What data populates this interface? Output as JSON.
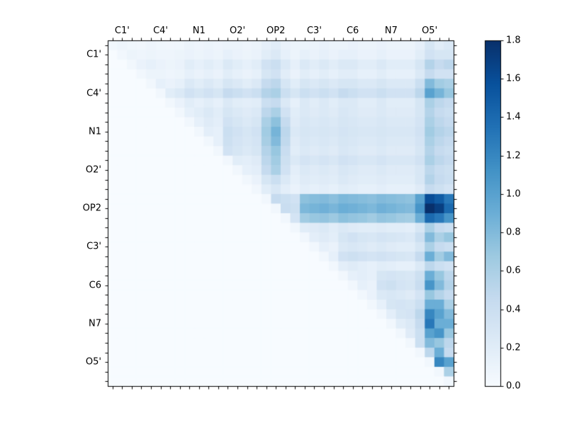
{
  "figure": {
    "background": "#ffffff"
  },
  "chart_data": {
    "type": "heatmap",
    "title": "",
    "xlabel": "",
    "ylabel": "",
    "x_tick_labels": [
      "C1'",
      "C4'",
      "N1",
      "O2'",
      "OP2",
      "C3'",
      "C6",
      "N7",
      "O5'"
    ],
    "y_tick_labels": [
      "C1'",
      "C4'",
      "N1",
      "O2'",
      "OP2",
      "C3'",
      "C6",
      "N7",
      "O5'"
    ],
    "label_cell_indices": [
      1,
      5,
      9,
      13,
      17,
      21,
      25,
      29,
      33
    ],
    "grid_size": 36,
    "vmin": 0.0,
    "vmax": 1.8,
    "colormap_name": "Blues",
    "colormap_anchors": [
      [
        0.0,
        "#f7fbff"
      ],
      [
        0.125,
        "#deebf7"
      ],
      [
        0.25,
        "#c6dbef"
      ],
      [
        0.375,
        "#9ecae1"
      ],
      [
        0.5,
        "#6baed6"
      ],
      [
        0.625,
        "#4292c6"
      ],
      [
        0.75,
        "#2171b5"
      ],
      [
        0.875,
        "#08519c"
      ],
      [
        1.0,
        "#08306b"
      ]
    ],
    "colorbar_position": "right",
    "colorbar_ticks": [
      "0.0",
      "0.2",
      "0.4",
      "0.6",
      "0.8",
      "1.0",
      "1.2",
      "1.4",
      "1.6",
      "1.8"
    ],
    "matrix": [
      [
        0.05,
        0.08,
        0.06,
        0.05,
        0.08,
        0.06,
        0.05,
        0.06,
        0.1,
        0.08,
        0.1,
        0.08,
        0.1,
        0.1,
        0.08,
        0.1,
        0.15,
        0.2,
        0.12,
        0.1,
        0.1,
        0.1,
        0.12,
        0.1,
        0.1,
        0.12,
        0.1,
        0.1,
        0.12,
        0.1,
        0.1,
        0.1,
        0.15,
        0.3,
        0.2,
        0.25
      ],
      [
        0,
        0.05,
        0.1,
        0.08,
        0.1,
        0.08,
        0.08,
        0.1,
        0.12,
        0.1,
        0.12,
        0.1,
        0.15,
        0.12,
        0.1,
        0.12,
        0.2,
        0.25,
        0.15,
        0.1,
        0.15,
        0.12,
        0.15,
        0.12,
        0.15,
        0.15,
        0.12,
        0.12,
        0.15,
        0.12,
        0.12,
        0.12,
        0.2,
        0.35,
        0.3,
        0.3
      ],
      [
        0,
        0,
        0.05,
        0.12,
        0.15,
        0.12,
        0.1,
        0.12,
        0.2,
        0.15,
        0.2,
        0.15,
        0.25,
        0.2,
        0.15,
        0.2,
        0.35,
        0.4,
        0.25,
        0.15,
        0.25,
        0.2,
        0.25,
        0.2,
        0.25,
        0.25,
        0.2,
        0.2,
        0.25,
        0.2,
        0.2,
        0.2,
        0.3,
        0.55,
        0.45,
        0.5
      ],
      [
        0,
        0,
        0,
        0.05,
        0.1,
        0.1,
        0.08,
        0.1,
        0.15,
        0.12,
        0.15,
        0.12,
        0.2,
        0.15,
        0.12,
        0.15,
        0.3,
        0.35,
        0.2,
        0.12,
        0.2,
        0.15,
        0.2,
        0.15,
        0.2,
        0.2,
        0.15,
        0.15,
        0.2,
        0.15,
        0.15,
        0.15,
        0.25,
        0.45,
        0.35,
        0.35
      ],
      [
        0,
        0,
        0,
        0,
        0.05,
        0.15,
        0.12,
        0.15,
        0.25,
        0.2,
        0.25,
        0.2,
        0.3,
        0.25,
        0.2,
        0.25,
        0.45,
        0.5,
        0.3,
        0.2,
        0.3,
        0.25,
        0.3,
        0.25,
        0.3,
        0.3,
        0.25,
        0.25,
        0.3,
        0.25,
        0.25,
        0.25,
        0.4,
        0.8,
        0.65,
        0.6
      ],
      [
        0,
        0,
        0,
        0,
        0,
        0.05,
        0.2,
        0.25,
        0.35,
        0.3,
        0.35,
        0.3,
        0.45,
        0.4,
        0.35,
        0.4,
        0.55,
        0.6,
        0.4,
        0.3,
        0.4,
        0.35,
        0.4,
        0.35,
        0.45,
        0.4,
        0.35,
        0.35,
        0.4,
        0.35,
        0.35,
        0.35,
        0.5,
        1.0,
        0.85,
        0.7
      ],
      [
        0,
        0,
        0,
        0,
        0,
        0,
        0.05,
        0.12,
        0.2,
        0.15,
        0.2,
        0.15,
        0.25,
        0.2,
        0.18,
        0.2,
        0.4,
        0.45,
        0.25,
        0.15,
        0.25,
        0.2,
        0.25,
        0.2,
        0.25,
        0.25,
        0.2,
        0.2,
        0.25,
        0.2,
        0.2,
        0.2,
        0.3,
        0.6,
        0.5,
        0.45
      ],
      [
        0,
        0,
        0,
        0,
        0,
        0,
        0,
        0.05,
        0.15,
        0.2,
        0.25,
        0.2,
        0.3,
        0.25,
        0.22,
        0.25,
        0.5,
        0.6,
        0.35,
        0.2,
        0.25,
        0.22,
        0.25,
        0.22,
        0.28,
        0.25,
        0.22,
        0.22,
        0.25,
        0.22,
        0.22,
        0.22,
        0.3,
        0.55,
        0.45,
        0.4
      ],
      [
        0,
        0,
        0,
        0,
        0,
        0,
        0,
        0,
        0.05,
        0.15,
        0.22,
        0.18,
        0.35,
        0.3,
        0.25,
        0.3,
        0.6,
        0.75,
        0.45,
        0.22,
        0.28,
        0.25,
        0.28,
        0.25,
        0.3,
        0.28,
        0.25,
        0.25,
        0.28,
        0.25,
        0.25,
        0.25,
        0.32,
        0.6,
        0.5,
        0.45
      ],
      [
        0,
        0,
        0,
        0,
        0,
        0,
        0,
        0,
        0,
        0.05,
        0.18,
        0.15,
        0.4,
        0.35,
        0.3,
        0.35,
        0.65,
        0.85,
        0.5,
        0.25,
        0.3,
        0.28,
        0.3,
        0.28,
        0.32,
        0.3,
        0.28,
        0.28,
        0.3,
        0.28,
        0.28,
        0.28,
        0.35,
        0.65,
        0.55,
        0.5
      ],
      [
        0,
        0,
        0,
        0,
        0,
        0,
        0,
        0,
        0,
        0,
        0.05,
        0.15,
        0.38,
        0.32,
        0.28,
        0.32,
        0.62,
        0.8,
        0.48,
        0.22,
        0.28,
        0.25,
        0.28,
        0.25,
        0.3,
        0.28,
        0.25,
        0.25,
        0.28,
        0.25,
        0.25,
        0.25,
        0.32,
        0.6,
        0.5,
        0.45
      ],
      [
        0,
        0,
        0,
        0,
        0,
        0,
        0,
        0,
        0,
        0,
        0,
        0.05,
        0.35,
        0.3,
        0.25,
        0.3,
        0.55,
        0.7,
        0.42,
        0.2,
        0.25,
        0.22,
        0.25,
        0.22,
        0.28,
        0.25,
        0.22,
        0.22,
        0.25,
        0.22,
        0.22,
        0.22,
        0.3,
        0.55,
        0.45,
        0.4
      ],
      [
        0,
        0,
        0,
        0,
        0,
        0,
        0,
        0,
        0,
        0,
        0,
        0,
        0.05,
        0.2,
        0.18,
        0.22,
        0.5,
        0.65,
        0.38,
        0.25,
        0.32,
        0.28,
        0.32,
        0.28,
        0.35,
        0.32,
        0.28,
        0.28,
        0.32,
        0.28,
        0.28,
        0.28,
        0.35,
        0.6,
        0.5,
        0.45
      ],
      [
        0,
        0,
        0,
        0,
        0,
        0,
        0,
        0,
        0,
        0,
        0,
        0,
        0,
        0.05,
        0.15,
        0.18,
        0.45,
        0.6,
        0.35,
        0.18,
        0.25,
        0.22,
        0.25,
        0.22,
        0.28,
        0.25,
        0.22,
        0.22,
        0.25,
        0.22,
        0.22,
        0.22,
        0.28,
        0.5,
        0.42,
        0.38
      ],
      [
        0,
        0,
        0,
        0,
        0,
        0,
        0,
        0,
        0,
        0,
        0,
        0,
        0,
        0,
        0.05,
        0.12,
        0.3,
        0.4,
        0.25,
        0.15,
        0.22,
        0.2,
        0.22,
        0.2,
        0.25,
        0.22,
        0.2,
        0.2,
        0.22,
        0.2,
        0.2,
        0.2,
        0.28,
        0.55,
        0.45,
        0.4
      ],
      [
        0,
        0,
        0,
        0,
        0,
        0,
        0,
        0,
        0,
        0,
        0,
        0,
        0,
        0,
        0,
        0.05,
        0.2,
        0.28,
        0.18,
        0.12,
        0.18,
        0.15,
        0.18,
        0.15,
        0.2,
        0.18,
        0.15,
        0.15,
        0.18,
        0.15,
        0.15,
        0.15,
        0.22,
        0.45,
        0.38,
        0.32
      ],
      [
        0,
        0,
        0,
        0,
        0,
        0,
        0,
        0,
        0,
        0,
        0,
        0,
        0,
        0,
        0,
        0,
        0.05,
        0.45,
        0.4,
        0.35,
        0.75,
        0.78,
        0.8,
        0.76,
        0.82,
        0.8,
        0.78,
        0.76,
        0.8,
        0.78,
        0.76,
        0.74,
        1.0,
        1.6,
        1.5,
        1.3
      ],
      [
        0,
        0,
        0,
        0,
        0,
        0,
        0,
        0,
        0,
        0,
        0,
        0,
        0,
        0,
        0,
        0,
        0,
        0.05,
        0.42,
        0.38,
        0.82,
        0.85,
        0.88,
        0.84,
        0.9,
        0.88,
        0.85,
        0.82,
        0.88,
        0.85,
        0.82,
        0.8,
        1.1,
        1.8,
        1.7,
        1.4
      ],
      [
        0,
        0,
        0,
        0,
        0,
        0,
        0,
        0,
        0,
        0,
        0,
        0,
        0,
        0,
        0,
        0,
        0,
        0,
        0.05,
        0.32,
        0.65,
        0.7,
        0.72,
        0.68,
        0.75,
        0.72,
        0.7,
        0.66,
        0.72,
        0.7,
        0.66,
        0.64,
        0.9,
        1.4,
        1.3,
        1.1
      ],
      [
        0,
        0,
        0,
        0,
        0,
        0,
        0,
        0,
        0,
        0,
        0,
        0,
        0,
        0,
        0,
        0,
        0,
        0,
        0,
        0.05,
        0.2,
        0.22,
        0.25,
        0.2,
        0.25,
        0.22,
        0.2,
        0.2,
        0.22,
        0.2,
        0.2,
        0.18,
        0.3,
        0.6,
        0.45,
        0.4
      ],
      [
        0,
        0,
        0,
        0,
        0,
        0,
        0,
        0,
        0,
        0,
        0,
        0,
        0,
        0,
        0,
        0,
        0,
        0,
        0,
        0,
        0.05,
        0.18,
        0.22,
        0.18,
        0.3,
        0.35,
        0.3,
        0.28,
        0.32,
        0.3,
        0.28,
        0.25,
        0.4,
        0.8,
        0.6,
        0.7
      ],
      [
        0,
        0,
        0,
        0,
        0,
        0,
        0,
        0,
        0,
        0,
        0,
        0,
        0,
        0,
        0,
        0,
        0,
        0,
        0,
        0,
        0,
        0.05,
        0.15,
        0.12,
        0.25,
        0.28,
        0.25,
        0.22,
        0.25,
        0.22,
        0.2,
        0.2,
        0.3,
        0.6,
        0.45,
        0.4
      ],
      [
        0,
        0,
        0,
        0,
        0,
        0,
        0,
        0,
        0,
        0,
        0,
        0,
        0,
        0,
        0,
        0,
        0,
        0,
        0,
        0,
        0,
        0,
        0.05,
        0.15,
        0.35,
        0.38,
        0.35,
        0.32,
        0.35,
        0.32,
        0.3,
        0.28,
        0.45,
        0.9,
        0.65,
        0.8
      ],
      [
        0,
        0,
        0,
        0,
        0,
        0,
        0,
        0,
        0,
        0,
        0,
        0,
        0,
        0,
        0,
        0,
        0,
        0,
        0,
        0,
        0,
        0,
        0,
        0.05,
        0.18,
        0.22,
        0.18,
        0.15,
        0.2,
        0.18,
        0.15,
        0.15,
        0.25,
        0.5,
        0.4,
        0.35
      ],
      [
        0,
        0,
        0,
        0,
        0,
        0,
        0,
        0,
        0,
        0,
        0,
        0,
        0,
        0,
        0,
        0,
        0,
        0,
        0,
        0,
        0,
        0,
        0,
        0,
        0.05,
        0.15,
        0.18,
        0.15,
        0.3,
        0.32,
        0.3,
        0.28,
        0.38,
        0.9,
        0.7,
        0.5
      ],
      [
        0,
        0,
        0,
        0,
        0,
        0,
        0,
        0,
        0,
        0,
        0,
        0,
        0,
        0,
        0,
        0,
        0,
        0,
        0,
        0,
        0,
        0,
        0,
        0,
        0,
        0.05,
        0.15,
        0.12,
        0.35,
        0.38,
        0.32,
        0.3,
        0.42,
        1.1,
        0.8,
        0.55
      ],
      [
        0,
        0,
        0,
        0,
        0,
        0,
        0,
        0,
        0,
        0,
        0,
        0,
        0,
        0,
        0,
        0,
        0,
        0,
        0,
        0,
        0,
        0,
        0,
        0,
        0,
        0,
        0.05,
        0.12,
        0.25,
        0.28,
        0.25,
        0.22,
        0.32,
        0.7,
        0.55,
        0.45
      ],
      [
        0,
        0,
        0,
        0,
        0,
        0,
        0,
        0,
        0,
        0,
        0,
        0,
        0,
        0,
        0,
        0,
        0,
        0,
        0,
        0,
        0,
        0,
        0,
        0,
        0,
        0,
        0,
        0.05,
        0.15,
        0.3,
        0.32,
        0.3,
        0.4,
        0.9,
        0.9,
        0.6
      ],
      [
        0,
        0,
        0,
        0,
        0,
        0,
        0,
        0,
        0,
        0,
        0,
        0,
        0,
        0,
        0,
        0,
        0,
        0,
        0,
        0,
        0,
        0,
        0,
        0,
        0,
        0,
        0,
        0,
        0.05,
        0.18,
        0.3,
        0.32,
        0.5,
        1.2,
        1.0,
        0.8
      ],
      [
        0,
        0,
        0,
        0,
        0,
        0,
        0,
        0,
        0,
        0,
        0,
        0,
        0,
        0,
        0,
        0,
        0,
        0,
        0,
        0,
        0,
        0,
        0,
        0,
        0,
        0,
        0,
        0,
        0,
        0.05,
        0.2,
        0.25,
        0.45,
        1.3,
        0.9,
        0.9
      ],
      [
        0,
        0,
        0,
        0,
        0,
        0,
        0,
        0,
        0,
        0,
        0,
        0,
        0,
        0,
        0,
        0,
        0,
        0,
        0,
        0,
        0,
        0,
        0,
        0,
        0,
        0,
        0,
        0,
        0,
        0,
        0.05,
        0.22,
        0.4,
        1.0,
        1.1,
        0.7
      ],
      [
        0,
        0,
        0,
        0,
        0,
        0,
        0,
        0,
        0,
        0,
        0,
        0,
        0,
        0,
        0,
        0,
        0,
        0,
        0,
        0,
        0,
        0,
        0,
        0,
        0,
        0,
        0,
        0,
        0,
        0,
        0,
        0.05,
        0.4,
        0.8,
        0.7,
        0.5
      ],
      [
        0,
        0,
        0,
        0,
        0,
        0,
        0,
        0,
        0,
        0,
        0,
        0,
        0,
        0,
        0,
        0,
        0,
        0,
        0,
        0,
        0,
        0,
        0,
        0,
        0,
        0,
        0,
        0,
        0,
        0,
        0,
        0,
        0.05,
        0.5,
        0.9,
        0.45
      ],
      [
        0,
        0,
        0,
        0,
        0,
        0,
        0,
        0,
        0,
        0,
        0,
        0,
        0,
        0,
        0,
        0,
        0,
        0,
        0,
        0,
        0,
        0,
        0,
        0,
        0,
        0,
        0,
        0,
        0,
        0,
        0,
        0,
        0,
        0.05,
        1.2,
        1.0
      ],
      [
        0,
        0,
        0,
        0,
        0,
        0,
        0,
        0,
        0,
        0,
        0,
        0,
        0,
        0,
        0,
        0,
        0,
        0,
        0,
        0,
        0,
        0,
        0,
        0,
        0,
        0,
        0,
        0,
        0,
        0,
        0,
        0,
        0,
        0,
        0.05,
        0.6
      ],
      [
        0,
        0,
        0,
        0,
        0,
        0,
        0,
        0,
        0,
        0,
        0,
        0,
        0,
        0,
        0,
        0,
        0,
        0,
        0,
        0,
        0,
        0,
        0,
        0,
        0,
        0,
        0,
        0,
        0,
        0,
        0,
        0,
        0,
        0,
        0,
        0.05
      ]
    ]
  }
}
